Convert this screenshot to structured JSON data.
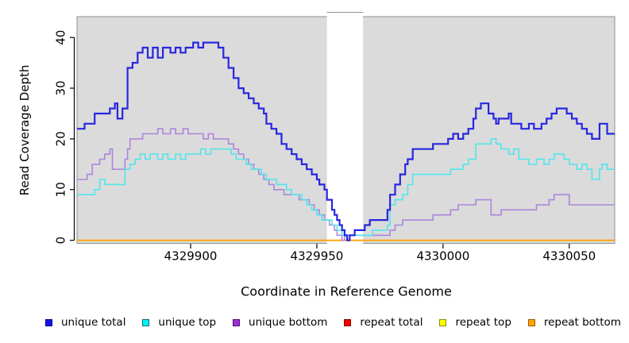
{
  "chart_data": {
    "type": "line",
    "subtype": "step",
    "title": "",
    "xlabel": "Coordinate in Reference Genome",
    "ylabel": "Read Coverage Depth",
    "xlim": [
      4329855,
      4330068
    ],
    "ylim": [
      -0.6,
      44.1
    ],
    "xticks": [
      4329900,
      4329950,
      4330000,
      4330050
    ],
    "xtick_labels": [
      "4329900",
      "4329950",
      "4330000",
      "4330050"
    ],
    "yticks": [
      0,
      10,
      20,
      30,
      40
    ],
    "ytick_labels": [
      "0",
      "10",
      "20",
      "30",
      "40"
    ],
    "grid": false,
    "panel_bg": "#dbdbdb",
    "panel_border": "#8f8f8f",
    "axis_color": "#000000",
    "gap_region": {
      "start": 4329954,
      "end": 4329968.3,
      "color": "#ffffff"
    },
    "series": [
      {
        "name": "repeat total",
        "color": "#e00000",
        "width": 1.5,
        "steps": [
          [
            4329854,
            0
          ]
        ]
      },
      {
        "name": "repeat top",
        "color": "#f5f500",
        "width": 1.5,
        "steps": [
          [
            4329854,
            0
          ]
        ]
      },
      {
        "name": "repeat bottom",
        "color": "#ffa200",
        "width": 1.8,
        "steps": [
          [
            4329854,
            0
          ]
        ]
      },
      {
        "name": "unique bottom",
        "color": "#ad85db",
        "width": 1.6,
        "steps": [
          [
            4329854,
            12
          ],
          [
            4329859,
            13
          ],
          [
            4329861,
            15
          ],
          [
            4329864,
            16
          ],
          [
            4329866,
            17
          ],
          [
            4329868,
            18
          ],
          [
            4329869,
            14
          ],
          [
            4329874,
            16
          ],
          [
            4329875,
            18
          ],
          [
            4329876,
            20
          ],
          [
            4329881,
            21
          ],
          [
            4329887,
            22
          ],
          [
            4329889,
            21
          ],
          [
            4329892,
            22
          ],
          [
            4329894,
            21
          ],
          [
            4329897,
            22
          ],
          [
            4329899,
            21
          ],
          [
            4329905,
            20
          ],
          [
            4329907,
            21
          ],
          [
            4329909,
            20
          ],
          [
            4329915,
            19
          ],
          [
            4329917,
            18
          ],
          [
            4329919,
            17
          ],
          [
            4329921,
            16
          ],
          [
            4329923,
            15
          ],
          [
            4329925,
            14
          ],
          [
            4329927,
            13
          ],
          [
            4329929,
            12
          ],
          [
            4329931,
            11
          ],
          [
            4329933,
            10
          ],
          [
            4329937,
            9
          ],
          [
            4329943,
            8
          ],
          [
            4329947,
            7
          ],
          [
            4329949,
            6
          ],
          [
            4329951,
            5
          ],
          [
            4329953,
            4
          ],
          [
            4329955,
            3
          ],
          [
            4329957,
            2
          ],
          [
            4329958,
            1
          ],
          [
            4329960,
            0
          ],
          [
            4329961,
            1
          ],
          [
            4329979,
            2
          ],
          [
            4329981,
            3
          ],
          [
            4329984,
            4
          ],
          [
            4329996,
            5
          ],
          [
            4330003,
            6
          ],
          [
            4330006,
            7
          ],
          [
            4330013,
            8
          ],
          [
            4330019,
            5
          ],
          [
            4330023,
            6
          ],
          [
            4330037,
            7
          ],
          [
            4330042,
            8
          ],
          [
            4330044,
            9
          ],
          [
            4330050,
            7
          ]
        ]
      },
      {
        "name": "unique top",
        "color": "#52e5ec",
        "width": 1.6,
        "steps": [
          [
            4329854,
            9
          ],
          [
            4329862,
            10
          ],
          [
            4329864,
            12
          ],
          [
            4329866,
            11
          ],
          [
            4329874,
            14
          ],
          [
            4329876,
            15
          ],
          [
            4329878,
            16
          ],
          [
            4329880,
            17
          ],
          [
            4329882,
            16
          ],
          [
            4329884,
            17
          ],
          [
            4329887,
            16
          ],
          [
            4329889,
            17
          ],
          [
            4329891,
            16
          ],
          [
            4329894,
            17
          ],
          [
            4329896,
            16
          ],
          [
            4329898,
            17
          ],
          [
            4329904,
            18
          ],
          [
            4329906,
            17
          ],
          [
            4329908,
            18
          ],
          [
            4329916,
            17
          ],
          [
            4329918,
            16
          ],
          [
            4329922,
            15
          ],
          [
            4329924,
            14
          ],
          [
            4329928,
            13
          ],
          [
            4329930,
            12
          ],
          [
            4329934,
            11
          ],
          [
            4329938,
            10
          ],
          [
            4329940,
            9
          ],
          [
            4329944,
            8
          ],
          [
            4329946,
            7
          ],
          [
            4329948,
            6
          ],
          [
            4329950,
            5
          ],
          [
            4329952,
            4
          ],
          [
            4329956,
            3
          ],
          [
            4329958,
            2
          ],
          [
            4329960,
            1
          ],
          [
            4329972,
            2
          ],
          [
            4329978,
            3
          ],
          [
            4329979,
            7
          ],
          [
            4329981,
            8
          ],
          [
            4329984,
            9
          ],
          [
            4329986,
            11
          ],
          [
            4329988,
            13
          ],
          [
            4330003,
            14
          ],
          [
            4330008,
            15
          ],
          [
            4330010,
            16
          ],
          [
            4330013,
            19
          ],
          [
            4330019,
            20
          ],
          [
            4330021,
            19
          ],
          [
            4330023,
            18
          ],
          [
            4330026,
            17
          ],
          [
            4330028,
            18
          ],
          [
            4330030,
            16
          ],
          [
            4330034,
            15
          ],
          [
            4330037,
            16
          ],
          [
            4330040,
            15
          ],
          [
            4330042,
            16
          ],
          [
            4330044,
            17
          ],
          [
            4330048,
            16
          ],
          [
            4330050,
            15
          ],
          [
            4330053,
            14
          ],
          [
            4330055,
            15
          ],
          [
            4330057,
            14
          ],
          [
            4330059,
            12
          ],
          [
            4330062,
            14
          ],
          [
            4330063,
            15
          ],
          [
            4330065,
            14
          ]
        ]
      },
      {
        "name": "unique total",
        "color": "#2727e0",
        "width": 2.2,
        "steps": [
          [
            4329854,
            22
          ],
          [
            4329858,
            23
          ],
          [
            4329862,
            25
          ],
          [
            4329868,
            26
          ],
          [
            4329870,
            27
          ],
          [
            4329871,
            24
          ],
          [
            4329873,
            26
          ],
          [
            4329875,
            34
          ],
          [
            4329877,
            35
          ],
          [
            4329879,
            37
          ],
          [
            4329881,
            38
          ],
          [
            4329883,
            36
          ],
          [
            4329885,
            38
          ],
          [
            4329887,
            36
          ],
          [
            4329889,
            38
          ],
          [
            4329892,
            37
          ],
          [
            4329894,
            38
          ],
          [
            4329896,
            37
          ],
          [
            4329898,
            38
          ],
          [
            4329901,
            39
          ],
          [
            4329903,
            38
          ],
          [
            4329905,
            39
          ],
          [
            4329911,
            38
          ],
          [
            4329913,
            36
          ],
          [
            4329915,
            34
          ],
          [
            4329917,
            32
          ],
          [
            4329919,
            30
          ],
          [
            4329921,
            29
          ],
          [
            4329923,
            28
          ],
          [
            4329925,
            27
          ],
          [
            4329927,
            26
          ],
          [
            4329929,
            25
          ],
          [
            4329930,
            23
          ],
          [
            4329932,
            22
          ],
          [
            4329934,
            21
          ],
          [
            4329936,
            19
          ],
          [
            4329938,
            18
          ],
          [
            4329940,
            17
          ],
          [
            4329942,
            16
          ],
          [
            4329944,
            15
          ],
          [
            4329946,
            14
          ],
          [
            4329948,
            13
          ],
          [
            4329950,
            12
          ],
          [
            4329951,
            11
          ],
          [
            4329953,
            10
          ],
          [
            4329954,
            8
          ],
          [
            4329956,
            6
          ],
          [
            4329957,
            5
          ],
          [
            4329958,
            4
          ],
          [
            4329959,
            3
          ],
          [
            4329960,
            2
          ],
          [
            4329961,
            1
          ],
          [
            4329962,
            0
          ],
          [
            4329963,
            1
          ],
          [
            4329965,
            2
          ],
          [
            4329969,
            3
          ],
          [
            4329971,
            4
          ],
          [
            4329978,
            6
          ],
          [
            4329979,
            9
          ],
          [
            4329981,
            11
          ],
          [
            4329983,
            13
          ],
          [
            4329985,
            15
          ],
          [
            4329986,
            16
          ],
          [
            4329988,
            18
          ],
          [
            4329996,
            19
          ],
          [
            4330002,
            20
          ],
          [
            4330004,
            21
          ],
          [
            4330006,
            20
          ],
          [
            4330008,
            21
          ],
          [
            4330010,
            22
          ],
          [
            4330012,
            24
          ],
          [
            4330013,
            26
          ],
          [
            4330015,
            27
          ],
          [
            4330018,
            25
          ],
          [
            4330020,
            24
          ],
          [
            4330021,
            23
          ],
          [
            4330022,
            24
          ],
          [
            4330026,
            25
          ],
          [
            4330027,
            23
          ],
          [
            4330031,
            22
          ],
          [
            4330034,
            23
          ],
          [
            4330036,
            22
          ],
          [
            4330039,
            23
          ],
          [
            4330041,
            24
          ],
          [
            4330043,
            25
          ],
          [
            4330045,
            26
          ],
          [
            4330049,
            25
          ],
          [
            4330051,
            24
          ],
          [
            4330053,
            23
          ],
          [
            4330055,
            22
          ],
          [
            4330057,
            21
          ],
          [
            4330059,
            20
          ],
          [
            4330062,
            23
          ],
          [
            4330065,
            21
          ]
        ]
      }
    ],
    "legend": {
      "position": "bottom",
      "items": [
        {
          "label": "unique total",
          "fill": "#1414e6",
          "border": "#00008b"
        },
        {
          "label": "unique top",
          "fill": "#00f2f2",
          "border": "#006e75"
        },
        {
          "label": "unique bottom",
          "fill": "#9c2fd9",
          "border": "#4d1373"
        },
        {
          "label": "repeat total",
          "fill": "#f00000",
          "border": "#8b0000"
        },
        {
          "label": "repeat top",
          "fill": "#ffff00",
          "border": "#8a8a00"
        },
        {
          "label": "repeat bottom",
          "fill": "#ffa500",
          "border": "#9a5a00"
        }
      ]
    }
  }
}
